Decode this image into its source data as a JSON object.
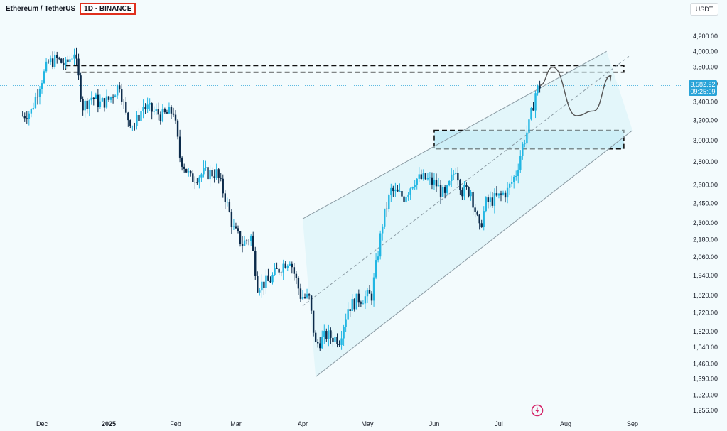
{
  "header": {
    "pair": "Ethereum / TetherUS",
    "timeframe": "1D · BINANCE"
  },
  "currency_label": "USDT",
  "last_price": {
    "value": "3,582.92",
    "countdown": "09:25:09",
    "color": "#2aa4d8"
  },
  "colors": {
    "up": "#21b6e3",
    "down": "#0b2a4a",
    "channel": "#8a9aa3",
    "zone_fill": "#b9e9f5"
  },
  "chart_data": {
    "type": "candlestick",
    "y_ticks": [
      4200,
      4000,
      3800,
      3600,
      3400,
      3200,
      3000,
      2800,
      2600,
      2450,
      2300,
      2180,
      2060,
      1940,
      1820,
      1720,
      1620,
      1540,
      1460,
      1390,
      1320,
      1256
    ],
    "y_tick_labels": [
      "4,200.00",
      "4,000.00",
      "3,800.00",
      "3,600.00",
      "3,400.00",
      "3,200.00",
      "3,000.00",
      "2,800.00",
      "2,600.00",
      "2,450.00",
      "2,300.00",
      "2,180.00",
      "2,060.00",
      "1,940.00",
      "1,820.00",
      "1,720.00",
      "1,620.00",
      "1,540.00",
      "1,460.00",
      "1,390.00",
      "1,320.00",
      "1,256.00"
    ],
    "y_scale": "log",
    "x_ticks": [
      {
        "label": "Dec",
        "date": "2024-12-01",
        "bold": false
      },
      {
        "label": "2025",
        "date": "2025-01-01",
        "bold": true
      },
      {
        "label": "Feb",
        "date": "2025-02-01",
        "bold": false
      },
      {
        "label": "Mar",
        "date": "2025-03-01",
        "bold": false
      },
      {
        "label": "Apr",
        "date": "2025-04-01",
        "bold": false
      },
      {
        "label": "May",
        "date": "2025-05-01",
        "bold": false
      },
      {
        "label": "Jun",
        "date": "2025-06-01",
        "bold": false
      },
      {
        "label": "Jul",
        "date": "2025-07-01",
        "bold": false
      },
      {
        "label": "Aug",
        "date": "2025-08-01",
        "bold": false
      },
      {
        "label": "Sep",
        "date": "2025-09-01",
        "bold": false
      }
    ],
    "close_series": [
      [
        "2024-11-22",
        3250
      ],
      [
        "2024-11-26",
        3300
      ],
      [
        "2024-11-30",
        3600
      ],
      [
        "2024-12-04",
        3850
      ],
      [
        "2024-12-08",
        3900
      ],
      [
        "2024-12-12",
        3820
      ],
      [
        "2024-12-16",
        4000
      ],
      [
        "2024-12-20",
        3350
      ],
      [
        "2024-12-24",
        3450
      ],
      [
        "2024-12-28",
        3380
      ],
      [
        "2025-01-01",
        3420
      ],
      [
        "2025-01-06",
        3600
      ],
      [
        "2025-01-09",
        3250
      ],
      [
        "2025-01-13",
        3150
      ],
      [
        "2025-01-17",
        3350
      ],
      [
        "2025-01-21",
        3300
      ],
      [
        "2025-01-26",
        3250
      ],
      [
        "2025-01-31",
        3300
      ],
      [
        "2025-02-03",
        2850
      ],
      [
        "2025-02-08",
        2650
      ],
      [
        "2025-02-14",
        2700
      ],
      [
        "2025-02-20",
        2700
      ],
      [
        "2025-02-24",
        2500
      ],
      [
        "2025-02-28",
        2250
      ],
      [
        "2025-03-04",
        2150
      ],
      [
        "2025-03-08",
        2200
      ],
      [
        "2025-03-11",
        1880
      ],
      [
        "2025-03-16",
        1900
      ],
      [
        "2025-03-22",
        2000
      ],
      [
        "2025-03-26",
        2050
      ],
      [
        "2025-03-31",
        1820
      ],
      [
        "2025-04-04",
        1800
      ],
      [
        "2025-04-07",
        1550
      ],
      [
        "2025-04-12",
        1600
      ],
      [
        "2025-04-18",
        1580
      ],
      [
        "2025-04-22",
        1750
      ],
      [
        "2025-04-27",
        1800
      ],
      [
        "2025-05-03",
        1820
      ],
      [
        "2025-05-08",
        2300
      ],
      [
        "2025-05-12",
        2550
      ],
      [
        "2025-05-18",
        2500
      ],
      [
        "2025-05-23",
        2650
      ],
      [
        "2025-05-28",
        2650
      ],
      [
        "2025-06-02",
        2600
      ],
      [
        "2025-06-06",
        2500
      ],
      [
        "2025-06-11",
        2750
      ],
      [
        "2025-06-14",
        2550
      ],
      [
        "2025-06-18",
        2550
      ],
      [
        "2025-06-22",
        2250
      ],
      [
        "2025-06-25",
        2450
      ],
      [
        "2025-07-01",
        2500
      ],
      [
        "2025-07-05",
        2550
      ],
      [
        "2025-07-09",
        2700
      ],
      [
        "2025-07-12",
        2950
      ],
      [
        "2025-07-15",
        3150
      ],
      [
        "2025-07-18",
        3500
      ],
      [
        "2025-07-20",
        3582.92
      ]
    ],
    "channel_lines": [
      {
        "name": "upper",
        "from": [
          "2025-04-01",
          2330
        ],
        "to": [
          "2025-08-20",
          4000
        ]
      },
      {
        "name": "middle",
        "from": [
          "2025-04-01",
          1760
        ],
        "to": [
          "2025-08-31",
          3950
        ]
      },
      {
        "name": "lower",
        "from": [
          "2025-04-07",
          1400
        ],
        "to": [
          "2025-09-01",
          3100
        ]
      }
    ],
    "resistance_zone": {
      "low": 3740,
      "high": 3820,
      "from": "2024-12-12",
      "to": "2025-08-28"
    },
    "support_zone": {
      "low": 2920,
      "high": 3100,
      "from": "2025-06-01",
      "to": "2025-08-28"
    },
    "projection_path": [
      [
        "2025-07-20",
        3582.92
      ],
      [
        "2025-07-26",
        3800
      ],
      [
        "2025-08-06",
        3250
      ],
      [
        "2025-08-14",
        3300
      ],
      [
        "2025-08-22",
        3700
      ]
    ]
  }
}
